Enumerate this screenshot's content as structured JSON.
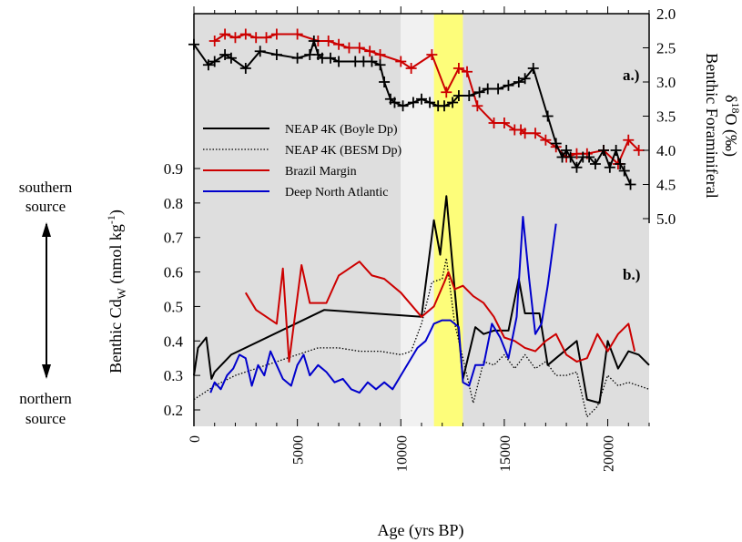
{
  "chart_data": [
    {
      "panel_label": "a.)",
      "type": "line",
      "xlabel": "Age (yrs BP)",
      "ylabel_line1": "Benthic Foraminiferal",
      "ylabel_line2": "δ18O (‰)",
      "xlim": [
        0,
        22000
      ],
      "ylim": [
        2.0,
        5.0
      ],
      "y_inverted": true,
      "yticks": [
        2.0,
        2.5,
        3.0,
        3.5,
        4.0,
        4.5,
        5.0
      ],
      "ytick_labels": [
        "2.0",
        "2.5",
        "3.0",
        "3.5",
        "4.0",
        "4.5",
        "5.0"
      ],
      "y_axis_side": "right",
      "series": [
        {
          "color": "#000000",
          "marker": "plus",
          "x": [
            0,
            700,
            1000,
            1500,
            1800,
            2500,
            3200,
            4000,
            5000,
            5600,
            5800,
            6000,
            6200,
            6600,
            7000,
            7800,
            8200,
            8600,
            9000,
            9200,
            9500,
            9700,
            10100,
            10600,
            11000,
            11400,
            11800,
            12100,
            12500,
            12800,
            13300,
            13800,
            14200,
            14700,
            15200,
            15700,
            16000,
            16400,
            17100,
            17500,
            17800,
            18000,
            18200,
            18500,
            18800,
            19100,
            19400,
            19800,
            20100,
            20400,
            20600,
            20800,
            21100
          ],
          "y": [
            2.45,
            2.75,
            2.7,
            2.6,
            2.65,
            2.8,
            2.55,
            2.6,
            2.65,
            2.6,
            2.4,
            2.6,
            2.65,
            2.65,
            2.7,
            2.7,
            2.7,
            2.7,
            2.75,
            3.0,
            3.25,
            3.3,
            3.35,
            3.3,
            3.25,
            3.3,
            3.35,
            3.35,
            3.3,
            3.2,
            3.2,
            3.15,
            3.1,
            3.1,
            3.05,
            3.0,
            2.95,
            2.8,
            3.5,
            3.9,
            4.1,
            4.0,
            4.1,
            4.25,
            4.1,
            4.1,
            4.2,
            4.0,
            4.25,
            4.0,
            4.2,
            4.3,
            4.5
          ]
        },
        {
          "color": "#cc0000",
          "marker": "plus",
          "x": [
            1000,
            1500,
            2000,
            2500,
            3000,
            3500,
            4000,
            5000,
            6000,
            6500,
            7000,
            7500,
            8000,
            8500,
            9000,
            10000,
            10500,
            11500,
            12200,
            12800,
            13200,
            13700,
            14500,
            15000,
            15500,
            15800,
            16000,
            16500,
            17000,
            17500,
            18000,
            18500,
            19000,
            19800,
            20500,
            21000,
            21500
          ],
          "y": [
            2.4,
            2.3,
            2.35,
            2.3,
            2.35,
            2.35,
            2.3,
            2.3,
            2.4,
            2.4,
            2.45,
            2.5,
            2.5,
            2.55,
            2.6,
            2.7,
            2.8,
            2.6,
            3.15,
            2.8,
            2.85,
            3.35,
            3.6,
            3.6,
            3.7,
            3.7,
            3.75,
            3.75,
            3.85,
            3.95,
            4.1,
            4.05,
            4.05,
            4.0,
            4.2,
            3.85,
            4.0
          ]
        }
      ]
    },
    {
      "panel_label": "b.)",
      "type": "line",
      "xlabel": "Age (yrs BP)",
      "ylabel": "Benthic CdW (nmol kg-1)",
      "xlim": [
        0,
        22000
      ],
      "ylim": [
        0.15,
        0.95
      ],
      "yticks": [
        0.2,
        0.3,
        0.4,
        0.5,
        0.6,
        0.7,
        0.8,
        0.9
      ],
      "ytick_labels": [
        "0.2",
        "0.3",
        "0.4",
        "0.5",
        "0.6",
        "0.7",
        "0.8",
        "0.9"
      ],
      "xticks": [
        0,
        5000,
        10000,
        15000,
        20000
      ],
      "xtick_labels": [
        "0",
        "5000",
        "10000",
        "15000",
        "20000"
      ],
      "shaded_regions": [
        {
          "x0": 0,
          "x1": 10000,
          "color": "#dedede"
        },
        {
          "x0": 10000,
          "x1": 11600,
          "color": "#f1f1f1"
        },
        {
          "x0": 11600,
          "x1": 13000,
          "color": "#fdfd7a"
        },
        {
          "x0": 13000,
          "x1": 22000,
          "color": "#dedede"
        }
      ],
      "series": [
        {
          "name": "NEAP 4K (Boyle Dp)",
          "color": "#000000",
          "style": "solid",
          "x": [
            0,
            200,
            600,
            850,
            1000,
            1800,
            6300,
            11000,
            11600,
            11900,
            12200,
            12600,
            13000,
            13600,
            14000,
            14500,
            15200,
            15700,
            16000,
            16300,
            16700,
            17100,
            17500,
            18500,
            19000,
            19600,
            20000,
            20500,
            21000,
            21500,
            22000
          ],
          "y": [
            0.3,
            0.38,
            0.41,
            0.29,
            0.31,
            0.36,
            0.49,
            0.47,
            0.75,
            0.65,
            0.82,
            0.55,
            0.29,
            0.44,
            0.42,
            0.43,
            0.43,
            0.58,
            0.48,
            0.48,
            0.48,
            0.33,
            0.35,
            0.4,
            0.23,
            0.22,
            0.4,
            0.32,
            0.37,
            0.36,
            0.33
          ]
        },
        {
          "name": "NEAP 4K (BESM Dp)",
          "color": "#000000",
          "style": "dotted",
          "x": [
            0,
            500,
            1000,
            2000,
            3000,
            4000,
            5000,
            6000,
            7000,
            8000,
            9000,
            10000,
            10500,
            11000,
            11500,
            12000,
            12200,
            12600,
            13000,
            13500,
            14000,
            14500,
            15000,
            15500,
            16000,
            16500,
            17000,
            17500,
            18000,
            18500,
            19000,
            19500,
            20000,
            20500,
            21000,
            21500,
            22000
          ],
          "y": [
            0.23,
            0.25,
            0.27,
            0.3,
            0.32,
            0.34,
            0.36,
            0.38,
            0.38,
            0.37,
            0.37,
            0.36,
            0.37,
            0.45,
            0.57,
            0.58,
            0.64,
            0.45,
            0.35,
            0.22,
            0.34,
            0.33,
            0.36,
            0.32,
            0.36,
            0.32,
            0.34,
            0.3,
            0.3,
            0.31,
            0.18,
            0.21,
            0.3,
            0.27,
            0.28,
            0.27,
            0.26
          ]
        },
        {
          "name": "Brazil Margin",
          "color": "#cc0000",
          "style": "solid",
          "x": [
            2500,
            3000,
            4000,
            4300,
            4600,
            5200,
            5600,
            6400,
            7000,
            8000,
            8600,
            9200,
            10000,
            11000,
            11600,
            12100,
            12300,
            12600,
            13000,
            13500,
            14000,
            14500,
            15000,
            15500,
            16000,
            16500,
            17000,
            17500,
            18000,
            18500,
            19000,
            19500,
            20000,
            20500,
            21000,
            21300
          ],
          "y": [
            0.54,
            0.49,
            0.45,
            0.61,
            0.34,
            0.62,
            0.51,
            0.51,
            0.59,
            0.63,
            0.59,
            0.58,
            0.54,
            0.47,
            0.5,
            0.57,
            0.6,
            0.55,
            0.56,
            0.53,
            0.51,
            0.47,
            0.41,
            0.4,
            0.38,
            0.37,
            0.4,
            0.42,
            0.36,
            0.34,
            0.35,
            0.42,
            0.37,
            0.42,
            0.45,
            0.37
          ]
        },
        {
          "name": "Deep North Atlantic",
          "color": "#0000cc",
          "style": "solid",
          "x": [
            800,
            1000,
            1300,
            1600,
            1900,
            2200,
            2500,
            2800,
            3100,
            3400,
            3700,
            4000,
            4300,
            4700,
            5000,
            5300,
            5600,
            6000,
            6400,
            6800,
            7200,
            7600,
            8000,
            8400,
            8800,
            9200,
            9600,
            10000,
            10400,
            10800,
            11200,
            11600,
            12000,
            12400,
            12800,
            13000,
            13300,
            13600,
            14000,
            14400,
            14800,
            15200,
            15600,
            15900,
            16200,
            16500,
            16800,
            17100,
            17500
          ],
          "y": [
            0.25,
            0.28,
            0.26,
            0.3,
            0.32,
            0.36,
            0.35,
            0.27,
            0.33,
            0.3,
            0.37,
            0.33,
            0.29,
            0.27,
            0.33,
            0.36,
            0.3,
            0.33,
            0.31,
            0.28,
            0.29,
            0.26,
            0.25,
            0.28,
            0.26,
            0.28,
            0.26,
            0.3,
            0.34,
            0.38,
            0.4,
            0.45,
            0.46,
            0.46,
            0.44,
            0.28,
            0.27,
            0.33,
            0.33,
            0.45,
            0.41,
            0.35,
            0.47,
            0.76,
            0.58,
            0.42,
            0.45,
            0.56,
            0.74
          ]
        }
      ]
    }
  ],
  "legend": [
    {
      "label": "NEAP 4K (Boyle Dp)",
      "color": "#000000",
      "style": "solid"
    },
    {
      "label": "NEAP 4K (BESM Dp)",
      "color": "#000000",
      "style": "dotted"
    },
    {
      "label": "Brazil Margin",
      "color": "#cc0000",
      "style": "solid"
    },
    {
      "label": "Deep North Atlantic",
      "color": "#0000cc",
      "style": "solid"
    }
  ],
  "source_annotation": {
    "top_line1": "southern",
    "top_line2": "source",
    "bottom_line1": "northern",
    "bottom_line2": "source"
  },
  "labels": {
    "xlabel": "Age (yrs BP)",
    "panel_a": "a.)",
    "panel_b": "b.)",
    "left_ylabel_main": "Benthic Cd",
    "left_ylabel_sub": "W",
    "left_ylabel_unit": " (nmol kg",
    "left_ylabel_exp": "-1",
    "left_ylabel_close": ")",
    "right_ylabel_line1": "Benthic Foraminiferal",
    "right_ylabel_d": "δ",
    "right_ylabel_sup": "18",
    "right_ylabel_rest": "O (‰)"
  }
}
